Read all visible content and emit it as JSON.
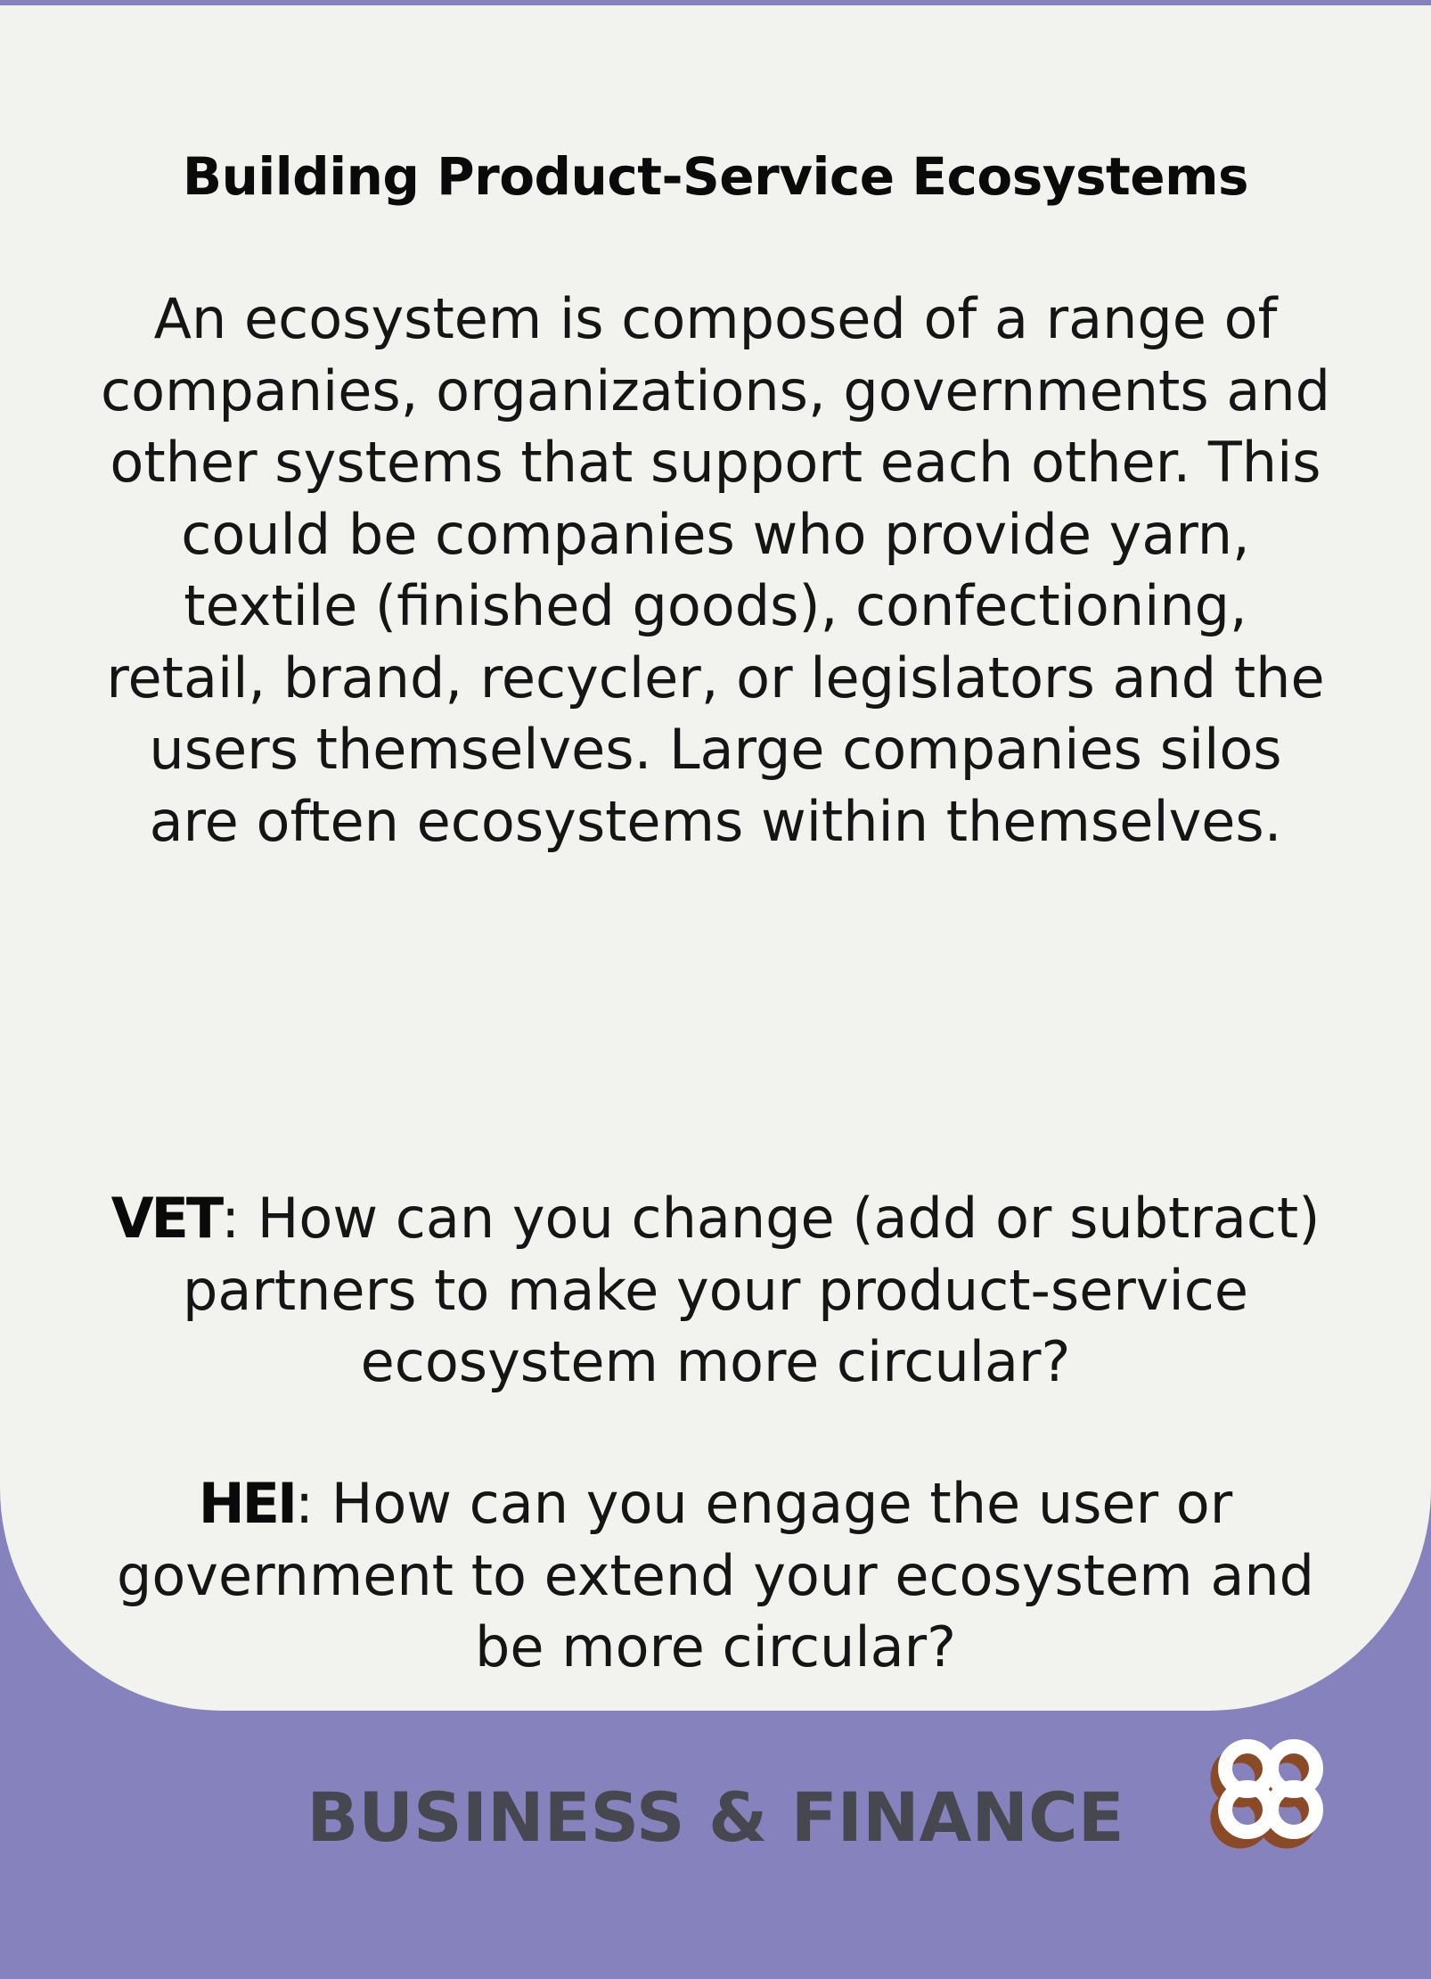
{
  "card": {
    "title": "Building Product-Service Ecosystems",
    "intro": "An ecosystem is composed of a range of companies, organizations, governments and other systems that support each other. This could be companies who provide yarn, textile (finished goods), confectioning, retail, brand, recycler, or legislators and the users themselves. Large companies silos are often ecosystems within themselves.",
    "questions": [
      {
        "tag": "VET",
        "text": ": How can you change (add or subtract) partners to make your product-service ecosystem more circular?"
      },
      {
        "tag": "HEI",
        "text": ": How can you engage the user or government to extend your ecosystem and be more circular?"
      }
    ]
  },
  "footer": {
    "category": "BUSINESS & FINANCE",
    "logo_icon": "clover-knot-icon"
  },
  "colors": {
    "background": "#8582bd",
    "card": "#f2f2ee",
    "category_text": "#47474f",
    "logo_front": "#ffffff",
    "logo_shadow": "#8a4a26"
  }
}
